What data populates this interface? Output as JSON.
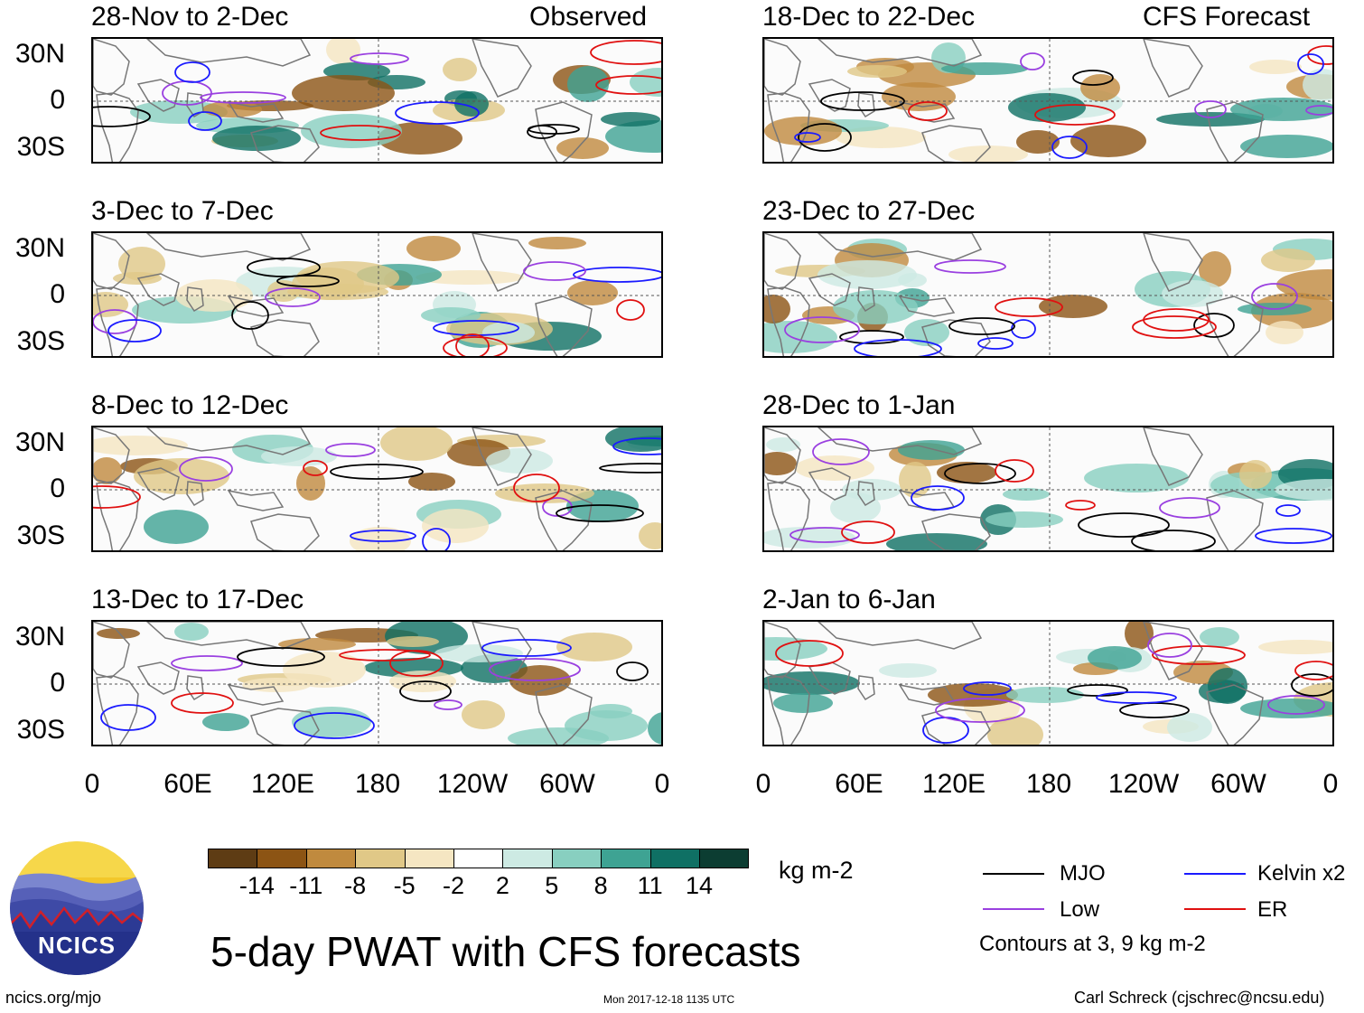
{
  "panels": [
    {
      "title": "28-Nov to 2-Dec",
      "tag": "Observed"
    },
    {
      "title": "3-Dec to 7-Dec",
      "tag": ""
    },
    {
      "title": "8-Dec to 12-Dec",
      "tag": ""
    },
    {
      "title": "13-Dec to 17-Dec",
      "tag": ""
    },
    {
      "title": "18-Dec to 22-Dec",
      "tag": "CFS Forecast"
    },
    {
      "title": "23-Dec to 27-Dec",
      "tag": ""
    },
    {
      "title": "28-Dec to 1-Jan",
      "tag": ""
    },
    {
      "title": "2-Jan to 6-Jan",
      "tag": ""
    }
  ],
  "y_labels": [
    "30N",
    "0",
    "30S"
  ],
  "x_labels": [
    "0",
    "60E",
    "120E",
    "180",
    "120W",
    "60W",
    "0"
  ],
  "colorbar": {
    "colors": [
      "#5e3c14",
      "#8c5414",
      "#c08a3e",
      "#e0c887",
      "#f5e6c2",
      "#ffffff",
      "#cdeae3",
      "#88cfc0",
      "#3ea393",
      "#0f7064",
      "#0c3d32"
    ],
    "labels": [
      "-14",
      "-11",
      "-8",
      "-5",
      "-2",
      "2",
      "5",
      "8",
      "11",
      "14"
    ],
    "unit": "kg m-2"
  },
  "legend": {
    "items": [
      {
        "label": "MJO",
        "color": "#000000"
      },
      {
        "label": "Kelvin x2",
        "color": "#1a1aff"
      },
      {
        "label": "Low",
        "color": "#9a40e0"
      },
      {
        "label": "ER",
        "color": "#e01010"
      }
    ],
    "note": "Contours at 3, 9 kg m-2"
  },
  "main_title": "5-day PWAT with CFS forecasts",
  "logo_text": "NCICS",
  "footer": {
    "left": "ncics.org/mjo",
    "center": "Mon 2017-12-18 1135 UTC",
    "right": "Carl Schreck (cjschrec@ncsu.edu)"
  }
}
